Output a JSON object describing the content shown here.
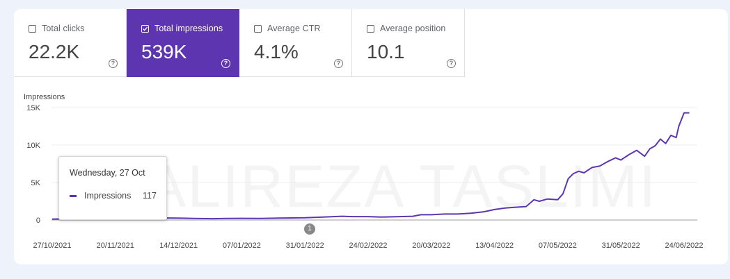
{
  "metrics": [
    {
      "label": "Total clicks",
      "value": "22.2K",
      "checked": false
    },
    {
      "label": "Total impressions",
      "value": "539K",
      "checked": true
    },
    {
      "label": "Average CTR",
      "value": "4.1%",
      "checked": false
    },
    {
      "label": "Average position",
      "value": "10.1",
      "checked": false
    }
  ],
  "help_glyph": "?",
  "accent_color": "#5e35b1",
  "tooltip": {
    "date": "Wednesday, 27 Oct",
    "series": "Impressions",
    "value": "117"
  },
  "annotation_marker": "1",
  "watermark": "ALIREZA TASLIMI",
  "chart_data": {
    "type": "line",
    "ylabel": "Impressions",
    "ylim": [
      0,
      15000
    ],
    "yticks": [
      0,
      5000,
      10000,
      15000
    ],
    "ytick_labels": [
      "0",
      "5K",
      "10K",
      "15K"
    ],
    "xtick_labels": [
      "27/10/2021",
      "20/11/2021",
      "14/12/2021",
      "07/01/2022",
      "31/01/2022",
      "24/02/2022",
      "20/03/2022",
      "13/04/2022",
      "07/05/2022",
      "31/05/2022",
      "24/06/2022"
    ],
    "grid": true,
    "series": [
      {
        "name": "Impressions",
        "color": "#5e35b1",
        "x": [
          "27/10/2021",
          "30/10/2021",
          "03/11/2021",
          "07/11/2021",
          "11/11/2021",
          "15/11/2021",
          "20/11/2021",
          "25/11/2021",
          "01/12/2021",
          "07/12/2021",
          "14/12/2021",
          "20/12/2021",
          "27/12/2021",
          "01/01/2022",
          "07/01/2022",
          "14/01/2022",
          "21/01/2022",
          "31/01/2022",
          "07/02/2022",
          "14/02/2022",
          "18/02/2022",
          "24/02/2022",
          "01/03/2022",
          "08/03/2022",
          "13/03/2022",
          "16/03/2022",
          "20/03/2022",
          "25/03/2022",
          "30/03/2022",
          "04/04/2022",
          "09/04/2022",
          "13/04/2022",
          "17/04/2022",
          "21/04/2022",
          "25/04/2022",
          "28/04/2022",
          "30/04/2022",
          "03/05/2022",
          "07/05/2022",
          "09/05/2022",
          "11/05/2022",
          "13/05/2022",
          "15/05/2022",
          "17/05/2022",
          "20/05/2022",
          "23/05/2022",
          "26/05/2022",
          "29/05/2022",
          "31/05/2022",
          "03/06/2022",
          "06/06/2022",
          "09/06/2022",
          "11/06/2022",
          "13/06/2022",
          "15/06/2022",
          "17/06/2022",
          "19/06/2022",
          "21/06/2022",
          "22/06/2022",
          "24/06/2022",
          "26/06/2022"
        ],
        "values": [
          117,
          150,
          200,
          250,
          180,
          220,
          260,
          250,
          300,
          280,
          250,
          200,
          180,
          200,
          220,
          200,
          250,
          300,
          400,
          500,
          450,
          450,
          400,
          450,
          500,
          700,
          700,
          800,
          800,
          900,
          1100,
          1400,
          1600,
          1700,
          1800,
          2700,
          2500,
          2800,
          2700,
          3500,
          5500,
          6200,
          6500,
          6300,
          7000,
          7200,
          7800,
          8300,
          8000,
          8700,
          9300,
          8500,
          9500,
          9900,
          10800,
          10200,
          11300,
          11000,
          12500,
          14300,
          14300
        ]
      }
    ]
  }
}
